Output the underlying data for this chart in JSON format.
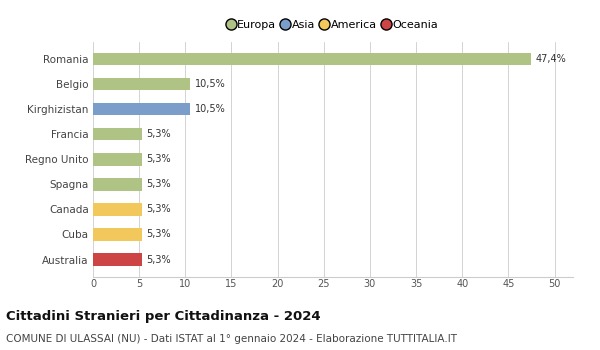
{
  "countries": [
    "Romania",
    "Belgio",
    "Kirghizistan",
    "Francia",
    "Regno Unito",
    "Spagna",
    "Canada",
    "Cuba",
    "Australia"
  ],
  "values": [
    47.4,
    10.5,
    10.5,
    5.3,
    5.3,
    5.3,
    5.3,
    5.3,
    5.3
  ],
  "labels": [
    "47,4%",
    "10,5%",
    "10,5%",
    "5,3%",
    "5,3%",
    "5,3%",
    "5,3%",
    "5,3%",
    "5,3%"
  ],
  "colors": [
    "#aec384",
    "#aec384",
    "#7b9dc9",
    "#aec384",
    "#aec384",
    "#aec384",
    "#f2c75c",
    "#f2c75c",
    "#cc4444"
  ],
  "legend": [
    {
      "label": "Europa",
      "color": "#aec384"
    },
    {
      "label": "Asia",
      "color": "#7b9dc9"
    },
    {
      "label": "America",
      "color": "#f2c75c"
    },
    {
      "label": "Oceania",
      "color": "#cc4444"
    }
  ],
  "xlim": [
    0,
    52
  ],
  "xticks": [
    0,
    5,
    10,
    15,
    20,
    25,
    30,
    35,
    40,
    45,
    50
  ],
  "title": "Cittadini Stranieri per Cittadinanza - 2024",
  "subtitle": "COMUNE DI ULASSAI (NU) - Dati ISTAT al 1° gennaio 2024 - Elaborazione TUTTITALIA.IT",
  "title_fontsize": 9.5,
  "subtitle_fontsize": 7.5,
  "background_color": "#ffffff",
  "bar_height": 0.5,
  "grid_color": "#cccccc",
  "label_fontsize": 7,
  "ytick_fontsize": 7.5,
  "xtick_fontsize": 7
}
